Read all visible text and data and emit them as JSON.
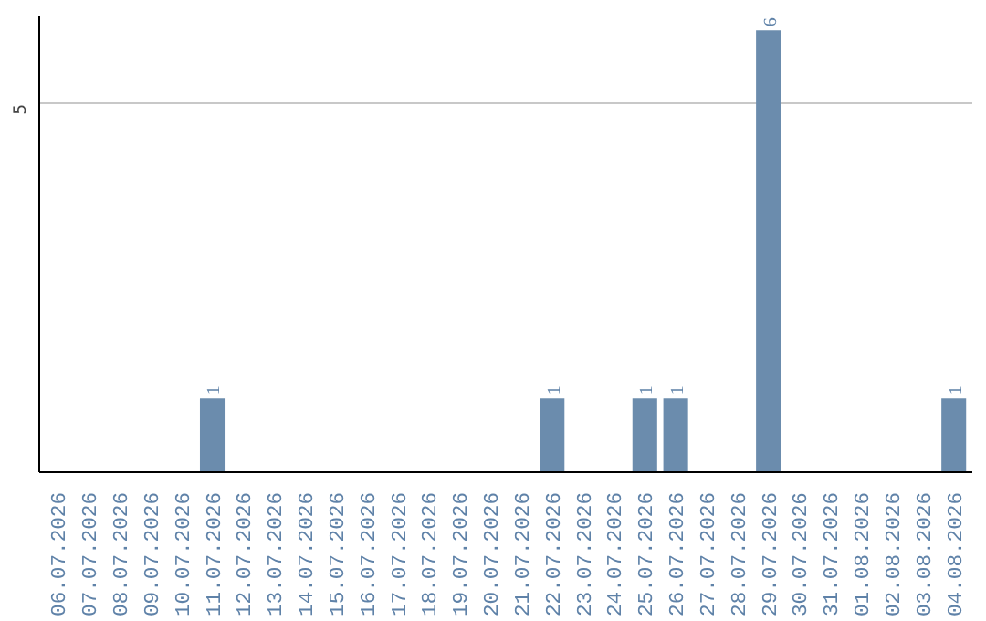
{
  "chart_data": {
    "type": "bar",
    "categories": [
      "06.07.2026",
      "07.07.2026",
      "08.07.2026",
      "09.07.2026",
      "10.07.2026",
      "11.07.2026",
      "12.07.2026",
      "13.07.2026",
      "14.07.2026",
      "15.07.2026",
      "16.07.2026",
      "17.07.2026",
      "18.07.2026",
      "19.07.2026",
      "20.07.2026",
      "21.07.2026",
      "22.07.2026",
      "23.07.2026",
      "24.07.2026",
      "25.07.2026",
      "26.07.2026",
      "27.07.2026",
      "28.07.2026",
      "29.07.2026",
      "30.07.2026",
      "31.07.2026",
      "01.08.2026",
      "02.08.2026",
      "03.08.2026",
      "04.08.2026"
    ],
    "values": [
      0,
      0,
      0,
      0,
      0,
      1,
      0,
      0,
      0,
      0,
      0,
      0,
      0,
      0,
      0,
      0,
      1,
      0,
      0,
      1,
      1,
      0,
      0,
      6,
      0,
      0,
      0,
      0,
      0,
      1
    ],
    "value_labels": [
      null,
      null,
      null,
      null,
      null,
      "1",
      null,
      null,
      null,
      null,
      null,
      null,
      null,
      null,
      null,
      null,
      "1",
      null,
      null,
      "1",
      "1",
      null,
      null,
      "6",
      null,
      null,
      null,
      null,
      null,
      "1"
    ],
    "color": "#6b8cad",
    "ylim": [
      0,
      6.2
    ],
    "yticks": [
      5
    ],
    "grid": "y"
  }
}
